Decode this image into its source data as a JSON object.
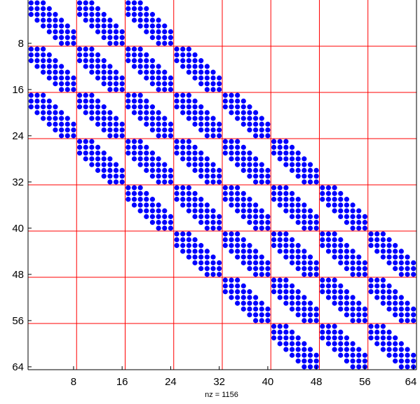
{
  "chart_data": {
    "type": "scatter",
    "title": "",
    "xlabel": "nz = 1156",
    "ylabel": "",
    "xlim": [
      0.5,
      64.5
    ],
    "ylim": [
      0.5,
      64.5
    ],
    "y_reversed": true,
    "x_ticks": [
      8,
      16,
      24,
      32,
      40,
      48,
      56,
      64
    ],
    "y_ticks": [
      8,
      16,
      24,
      32,
      40,
      48,
      56,
      64
    ],
    "x_tick_labels": [
      "8",
      "16",
      "24",
      "32",
      "40",
      "48",
      "56",
      "64"
    ],
    "y_tick_labels": [
      "8",
      "16",
      "24",
      "32",
      "40",
      "48",
      "56",
      "64"
    ],
    "grid_lines": [
      8.5,
      16.5,
      24.5,
      32.5,
      40.5,
      48.5,
      56.5
    ],
    "grid_color": "#ff0000",
    "marker_color": "#0000ff",
    "block_size": 8,
    "block_pattern": {
      "description_rows": "each nonzero 8x8 block: entries (i,j) with |i-j| <= 2",
      "band_halfwidth": 2
    },
    "nonzero_blocks": [
      [
        1,
        1
      ],
      [
        1,
        2
      ],
      [
        1,
        3
      ],
      [
        2,
        1
      ],
      [
        2,
        2
      ],
      [
        2,
        3
      ],
      [
        2,
        4
      ],
      [
        3,
        1
      ],
      [
        3,
        2
      ],
      [
        3,
        3
      ],
      [
        3,
        4
      ],
      [
        3,
        5
      ],
      [
        4,
        2
      ],
      [
        4,
        3
      ],
      [
        4,
        4
      ],
      [
        4,
        5
      ],
      [
        4,
        6
      ],
      [
        5,
        3
      ],
      [
        5,
        4
      ],
      [
        5,
        5
      ],
      [
        5,
        6
      ],
      [
        5,
        7
      ],
      [
        6,
        4
      ],
      [
        6,
        5
      ],
      [
        6,
        6
      ],
      [
        6,
        7
      ],
      [
        6,
        8
      ],
      [
        7,
        5
      ],
      [
        7,
        6
      ],
      [
        7,
        7
      ],
      [
        7,
        8
      ],
      [
        8,
        6
      ],
      [
        8,
        7
      ],
      [
        8,
        8
      ]
    ],
    "nz": 1156
  }
}
